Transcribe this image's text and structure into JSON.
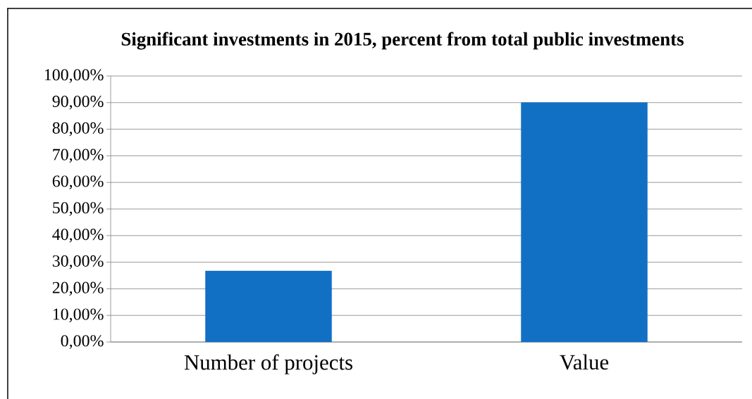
{
  "chart_data": {
    "type": "bar",
    "title": "Significant investments in 2015, percent from total public investments",
    "categories": [
      "Number of projects",
      "Value"
    ],
    "values": [
      26.7,
      90.0
    ],
    "color": "#1170c4",
    "ylim": [
      0,
      100
    ],
    "yticks": [
      {
        "value": 0,
        "label": "0,00%"
      },
      {
        "value": 10,
        "label": "10,00%"
      },
      {
        "value": 20,
        "label": "20,00%"
      },
      {
        "value": 30,
        "label": "30,00%"
      },
      {
        "value": 40,
        "label": "40,00%"
      },
      {
        "value": 50,
        "label": "50,00%"
      },
      {
        "value": 60,
        "label": "60,00%"
      },
      {
        "value": 70,
        "label": "70,00%"
      },
      {
        "value": 80,
        "label": "80,00%"
      },
      {
        "value": 90,
        "label": "90,00%"
      },
      {
        "value": 100,
        "label": "100,00%"
      }
    ],
    "grid": "y"
  }
}
